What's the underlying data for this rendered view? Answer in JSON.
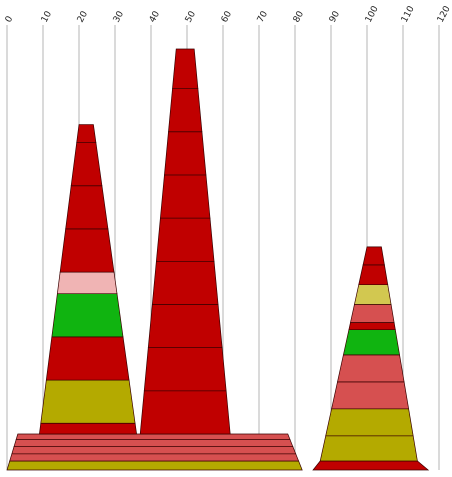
{
  "chart_data": {
    "type": "bar",
    "x_axis": {
      "min": 0,
      "max": 120,
      "ticks": [
        "0",
        "10",
        "20",
        "30",
        "40",
        "50",
        "60",
        "70",
        "80",
        "90",
        "100",
        "110",
        "120"
      ],
      "position": "top",
      "grid": true
    },
    "value_axis": {
      "min": 0,
      "max": 100,
      "shown": false
    },
    "colors": {
      "red": "#c00000",
      "salmon": "#d65050",
      "pink": "#f0b4b4",
      "green": "#10b410",
      "olive": "#b4aa00",
      "khaki": "#d2c850",
      "grid": "#b4b4b4",
      "edge": "#3a0000"
    },
    "shapes": [
      {
        "kind": "flat-cone",
        "base": [
          0,
          82
        ],
        "top": [
          3,
          78
        ],
        "segments": [
          {
            "from": 0,
            "to": 2.5,
            "color": "olive"
          },
          {
            "from": 2.5,
            "to": 4.5,
            "color": "salmon"
          },
          {
            "from": 4.5,
            "to": 6.5,
            "color": "salmon"
          },
          {
            "from": 6.5,
            "to": 8.5,
            "color": "salmon"
          },
          {
            "from": 8.5,
            "to": 10,
            "color": "salmon"
          }
        ]
      },
      {
        "kind": "cone",
        "base": [
          9,
          36
        ],
        "top": [
          20,
          24
        ],
        "height": 96,
        "segments": [
          {
            "from": 10,
            "to": 13,
            "color": "red"
          },
          {
            "from": 13,
            "to": 25,
            "color": "olive"
          },
          {
            "from": 25,
            "to": 37,
            "color": "red"
          },
          {
            "from": 37,
            "to": 49,
            "color": "green"
          },
          {
            "from": 49,
            "to": 55,
            "color": "pink"
          },
          {
            "from": 55,
            "to": 67,
            "color": "red"
          },
          {
            "from": 67,
            "to": 79,
            "color": "red"
          },
          {
            "from": 79,
            "to": 91,
            "color": "red"
          },
          {
            "from": 91,
            "to": 96,
            "color": "red"
          }
        ]
      },
      {
        "kind": "cone",
        "base": [
          37,
          62
        ],
        "top": [
          47,
          52
        ],
        "height": 117,
        "segments": [
          {
            "from": 10,
            "to": 22,
            "color": "red"
          },
          {
            "from": 22,
            "to": 34,
            "color": "red"
          },
          {
            "from": 34,
            "to": 46,
            "color": "red"
          },
          {
            "from": 46,
            "to": 58,
            "color": "red"
          },
          {
            "from": 58,
            "to": 70,
            "color": "red"
          },
          {
            "from": 70,
            "to": 82,
            "color": "red"
          },
          {
            "from": 82,
            "to": 94,
            "color": "red"
          },
          {
            "from": 94,
            "to": 106,
            "color": "red"
          },
          {
            "from": 106,
            "to": 117,
            "color": "red"
          }
        ]
      },
      {
        "kind": "flat-cone",
        "base": [
          85,
          117
        ],
        "top": [
          87,
          114
        ],
        "segments": [
          {
            "from": 0,
            "to": 2.5,
            "color": "red"
          }
        ]
      },
      {
        "kind": "cone",
        "base": [
          87,
          114
        ],
        "top": [
          100,
          104
        ],
        "height": 62,
        "segments": [
          {
            "from": 2.5,
            "to": 9.5,
            "color": "olive"
          },
          {
            "from": 9.5,
            "to": 17,
            "color": "olive"
          },
          {
            "from": 17,
            "to": 24.5,
            "color": "salmon"
          },
          {
            "from": 24.5,
            "to": 32,
            "color": "salmon"
          },
          {
            "from": 32,
            "to": 39,
            "color": "green"
          },
          {
            "from": 39,
            "to": 41,
            "color": "red"
          },
          {
            "from": 41,
            "to": 46,
            "color": "salmon"
          },
          {
            "from": 46,
            "to": 51.5,
            "color": "khaki"
          },
          {
            "from": 51.5,
            "to": 57,
            "color": "red"
          },
          {
            "from": 57,
            "to": 62,
            "color": "red"
          }
        ]
      }
    ]
  }
}
